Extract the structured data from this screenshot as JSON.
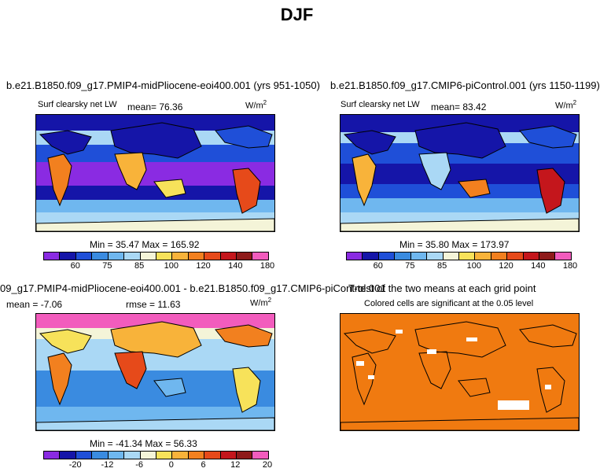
{
  "page": {
    "title": "DJF"
  },
  "panels": [
    {
      "id": "p1",
      "header": "b.e21.B1850.f09_g17.PMIP4-midPliocene-eoi400.001 (yrs 951-1050)",
      "variable": "Surf clearsky net LW",
      "stat": "mean=  76.36",
      "units": "W/m",
      "units_sup": "2",
      "minmax": "Min =   35.47  Max =  165.92",
      "colorbar": {
        "colors": [
          "#8a2be2",
          "#1515a8",
          "#1f4fd8",
          "#3a8be0",
          "#6fb7ef",
          "#aad8f5",
          "#f4f4d8",
          "#f7e25a",
          "#f8b33a",
          "#f2801f",
          "#e64a1a",
          "#c4161c",
          "#8e1a1a",
          "#f25cbd"
        ],
        "labels": [
          "60",
          "75",
          "85",
          "100",
          "120",
          "140",
          "180"
        ]
      }
    },
    {
      "id": "p2",
      "header": "b.e21.B1850.f09_g17.CMIP6-piControl.001 (yrs 1150-1199)",
      "variable": "Surf clearsky net LW",
      "stat": "mean=  83.42",
      "units": "W/m",
      "units_sup": "2",
      "minmax": "Min =   35.80  Max =  173.97",
      "colorbar": {
        "colors": [
          "#8a2be2",
          "#1515a8",
          "#1f4fd8",
          "#3a8be0",
          "#6fb7ef",
          "#aad8f5",
          "#f4f4d8",
          "#f7e25a",
          "#f8b33a",
          "#f2801f",
          "#e64a1a",
          "#c4161c",
          "#8e1a1a",
          "#f25cbd"
        ],
        "labels": [
          "60",
          "75",
          "85",
          "100",
          "120",
          "140",
          "180"
        ]
      }
    },
    {
      "id": "p3",
      "header": "09_g17.PMIP4-midPliocene-eoi400.001 - b.e21.B1850.f09_g17.CMIP6-piControl.001",
      "stat_mean": "mean =  -7.06",
      "stat_rmse": "rmse =  11.63",
      "units": "W/m",
      "units_sup": "2",
      "minmax": "Min = -41.34  Max =  56.33",
      "colorbar": {
        "colors": [
          "#8a2be2",
          "#1515a8",
          "#1f4fd8",
          "#3a8be0",
          "#6fb7ef",
          "#aad8f5",
          "#f4f4d8",
          "#f7e25a",
          "#f8b33a",
          "#f2801f",
          "#e64a1a",
          "#c4161c",
          "#8e1a1a",
          "#f25cbd"
        ],
        "labels": [
          "-20",
          "-12",
          "-6",
          "0",
          "6",
          "12",
          "20"
        ]
      }
    },
    {
      "id": "p4",
      "header": "T-test of the two means at each grid point",
      "subheader": "Colored cells are significant at the 0.05 level",
      "fill_color": "#f07a10"
    }
  ]
}
